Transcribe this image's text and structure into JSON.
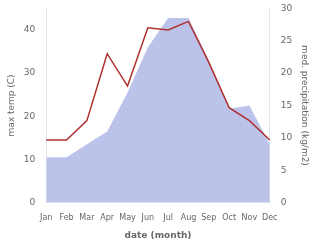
{
  "chart_data": {
    "type": "line",
    "categories": [
      "Jan",
      "Feb",
      "Mar",
      "Apr",
      "May",
      "Jun",
      "Jul",
      "Aug",
      "Sep",
      "Oct",
      "Nov",
      "Dec"
    ],
    "xlabel": "date (month)",
    "ylabel": "max temp (C)",
    "y2label": "med. precipitation (kg/m2)",
    "series": [
      {
        "type": "line",
        "color": "#b03030",
        "values": [
          14.5,
          14.5,
          19.0,
          34.5,
          27.0,
          40.5,
          40.0,
          42.0,
          32.5,
          22.0,
          19.0,
          14.5
        ]
      },
      {
        "type": "area",
        "color": "#b0b8e8",
        "axis": "y2",
        "values": [
          7.0,
          7.0,
          9.0,
          11.0,
          17.0,
          24.0,
          28.5,
          28.5,
          22.0,
          14.5,
          15.0,
          9.0
        ]
      }
    ],
    "ylim": [
      0,
      45
    ],
    "yticks": [
      0,
      10,
      20,
      30,
      40
    ],
    "y2lim": [
      0,
      30
    ],
    "y2ticks": [
      0,
      5,
      10,
      15,
      20,
      25,
      30
    ],
    "grid": false
  }
}
